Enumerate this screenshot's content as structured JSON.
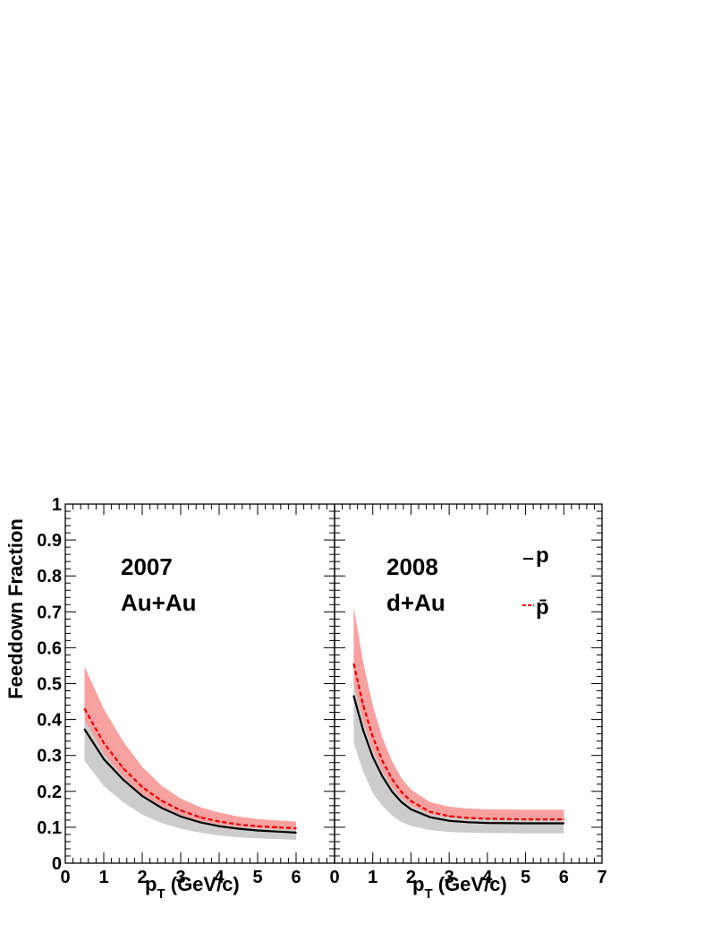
{
  "chart_data": [
    {
      "type": "line",
      "panel": "left",
      "annotation": [
        "2007",
        "Au+Au"
      ],
      "xlabel": "p",
      "xlabel_sub": "T",
      "xlabel_unit": " (GeV/c)",
      "ylabel": "Feeddown Fraction",
      "xlim": [
        0,
        7
      ],
      "ylim": [
        0,
        1
      ],
      "x_ticks": [
        "0",
        "1",
        "2",
        "3",
        "4",
        "5",
        "6"
      ],
      "y_ticks": [
        "0",
        "0.1",
        "0.2",
        "0.3",
        "0.4",
        "0.5",
        "0.6",
        "0.7",
        "0.8",
        "0.9",
        "1"
      ],
      "x": [
        0.5,
        1.0,
        1.5,
        2.0,
        2.5,
        3.0,
        3.5,
        4.0,
        4.5,
        5.0,
        5.5,
        6.0
      ],
      "series": [
        {
          "name": "p",
          "color": "#000000",
          "style": "solid",
          "values": [
            0.373,
            0.29,
            0.233,
            0.187,
            0.154,
            0.13,
            0.114,
            0.103,
            0.096,
            0.091,
            0.088,
            0.085
          ],
          "band_low": [
            0.285,
            0.215,
            0.17,
            0.135,
            0.112,
            0.096,
            0.085,
            0.077,
            0.072,
            0.069,
            0.067,
            0.065
          ],
          "band_high": [
            0.46,
            0.365,
            0.29,
            0.23,
            0.188,
            0.16,
            0.14,
            0.126,
            0.116,
            0.109,
            0.104,
            0.1
          ],
          "band_color": "#cccccc"
        },
        {
          "name": "p̄",
          "color": "#e00000",
          "style": "dashed",
          "values": [
            0.43,
            0.335,
            0.265,
            0.212,
            0.174,
            0.147,
            0.128,
            0.116,
            0.108,
            0.103,
            0.1,
            0.097
          ],
          "band_low": [
            0.4,
            0.305,
            0.24,
            0.192,
            0.158,
            0.134,
            0.118,
            0.108,
            0.101,
            0.097,
            0.094,
            0.092
          ],
          "band_high": [
            0.548,
            0.43,
            0.34,
            0.268,
            0.216,
            0.18,
            0.156,
            0.141,
            0.13,
            0.123,
            0.119,
            0.116
          ],
          "band_color": "#f89c9c"
        }
      ]
    },
    {
      "type": "line",
      "panel": "right",
      "annotation": [
        "2008",
        "d+Au"
      ],
      "xlabel": "p",
      "xlabel_sub": "T",
      "xlabel_unit": " (GeV/c)",
      "xlim": [
        0,
        7
      ],
      "ylim": [
        0,
        1
      ],
      "x_ticks": [
        "0",
        "1",
        "2",
        "3",
        "4",
        "5",
        "6",
        "7"
      ],
      "x": [
        0.5,
        0.75,
        1.0,
        1.25,
        1.5,
        1.75,
        2.0,
        2.5,
        3.0,
        3.5,
        4.0,
        5.0,
        6.0
      ],
      "legend": {
        "position": "top-right",
        "entries": [
          "p",
          "p̄"
        ]
      },
      "series": [
        {
          "name": "p",
          "color": "#000000",
          "style": "solid",
          "values": [
            0.466,
            0.37,
            0.296,
            0.242,
            0.2,
            0.17,
            0.15,
            0.128,
            0.118,
            0.114,
            0.112,
            0.111,
            0.111
          ],
          "band_low": [
            0.335,
            0.255,
            0.195,
            0.16,
            0.133,
            0.114,
            0.104,
            0.092,
            0.087,
            0.085,
            0.084,
            0.083,
            0.083
          ],
          "band_high": [
            0.585,
            0.465,
            0.375,
            0.305,
            0.252,
            0.214,
            0.187,
            0.159,
            0.148,
            0.144,
            0.142,
            0.141,
            0.141
          ],
          "band_color": "#cccccc"
        },
        {
          "name": "p̄",
          "color": "#e00000",
          "style": "dashed",
          "values": [
            0.555,
            0.44,
            0.352,
            0.285,
            0.235,
            0.198,
            0.173,
            0.143,
            0.131,
            0.126,
            0.124,
            0.122,
            0.122
          ],
          "band_low": [
            0.5,
            0.395,
            0.315,
            0.255,
            0.212,
            0.181,
            0.16,
            0.136,
            0.127,
            0.123,
            0.121,
            0.12,
            0.12
          ],
          "band_high": [
            0.713,
            0.56,
            0.44,
            0.35,
            0.285,
            0.237,
            0.205,
            0.17,
            0.157,
            0.152,
            0.15,
            0.149,
            0.149
          ],
          "band_color": "#f89c9c"
        }
      ]
    }
  ]
}
